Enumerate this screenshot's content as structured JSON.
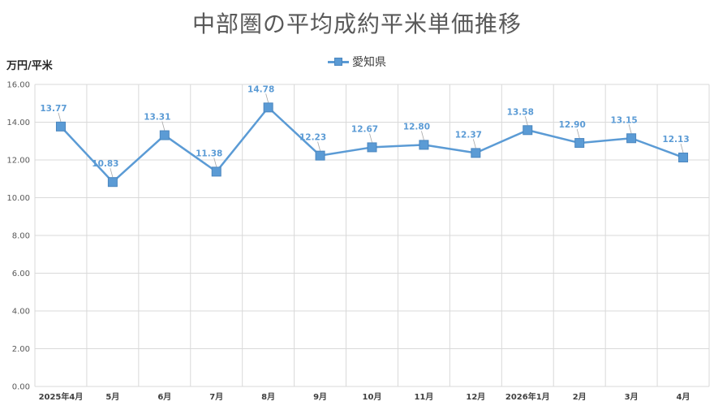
{
  "title": "中部圏の平均成約平米単価推移",
  "unit_label": "万円/平米",
  "colors": {
    "series": "#5b9bd5",
    "grid": "#d9d9d9",
    "leader": "#a6a6a6"
  },
  "chart_data": {
    "type": "line",
    "title": "中部圏の平均成約平米単価推移",
    "ylabel": "万円/平米",
    "xlabel": "",
    "categories": [
      "2025年4月",
      "5月",
      "6月",
      "7月",
      "8月",
      "9月",
      "10月",
      "11月",
      "12月",
      "2026年1月",
      "2月",
      "3月",
      "4月"
    ],
    "series": [
      {
        "name": "愛知県",
        "values": [
          13.77,
          10.83,
          13.31,
          11.38,
          14.78,
          12.23,
          12.67,
          12.8,
          12.37,
          13.58,
          12.9,
          13.15,
          12.13
        ],
        "labels": [
          "13.77",
          "10.83",
          "13.31",
          "11.38",
          "14.78",
          "12.23",
          "12.67",
          "12.80",
          "12.37",
          "13.58",
          "12.90",
          "13.15",
          "12.13"
        ]
      }
    ],
    "ylim": [
      0,
      16
    ],
    "yticks": [
      "0.00",
      "2.00",
      "4.00",
      "6.00",
      "8.00",
      "10.00",
      "12.00",
      "14.00",
      "16.00"
    ],
    "grid": true,
    "legend_position": "top"
  }
}
